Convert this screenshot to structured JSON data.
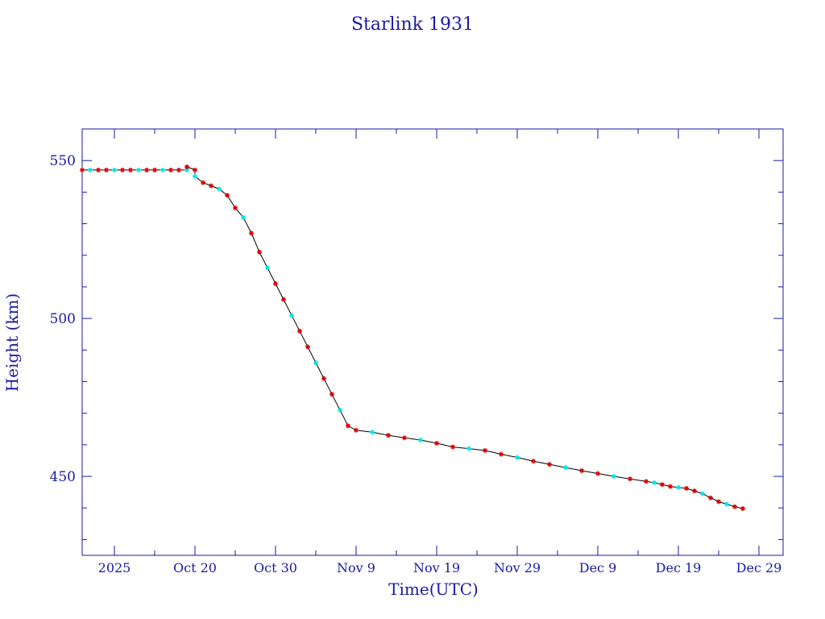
{
  "chart_data": {
    "type": "line",
    "title": "Starlink 1931",
    "xlabel": "Time(UTC)",
    "ylabel": "Height (km)",
    "x_unit": "date (UTC)",
    "xlim": [
      "2025-10-06",
      "2026-01-01"
    ],
    "ylim": [
      425,
      560
    ],
    "x_tick_labels": [
      {
        "date": "2025-10-10",
        "label": "2025"
      },
      {
        "date": "2025-10-20",
        "label": "Oct 20"
      },
      {
        "date": "2025-10-30",
        "label": "Oct 30"
      },
      {
        "date": "2025-11-09",
        "label": "Nov  9"
      },
      {
        "date": "2025-11-19",
        "label": "Nov 19"
      },
      {
        "date": "2025-11-29",
        "label": "Nov 29"
      },
      {
        "date": "2025-12-09",
        "label": "Dec  9"
      },
      {
        "date": "2025-12-19",
        "label": "Dec 19"
      },
      {
        "date": "2025-12-29",
        "label": "Dec 29"
      }
    ],
    "y_ticks": [
      450,
      500,
      550
    ],
    "grid": false,
    "colors": {
      "axis": "#1a1aa6",
      "line": "#000000",
      "marker": "#e00000",
      "marker_alt": "#00e5ee"
    },
    "series": [
      {
        "marker": "asterisk",
        "points": [
          [
            "2025-10-06",
            547.0
          ],
          [
            "2025-10-07",
            547.0
          ],
          [
            "2025-10-08",
            547.0
          ],
          [
            "2025-10-09",
            547.0
          ],
          [
            "2025-10-10",
            547.0
          ],
          [
            "2025-10-11",
            547.0
          ],
          [
            "2025-10-12",
            547.0
          ],
          [
            "2025-10-13",
            547.0
          ],
          [
            "2025-10-14",
            547.0
          ],
          [
            "2025-10-15",
            547.0
          ],
          [
            "2025-10-16",
            547.0
          ],
          [
            "2025-10-17",
            547.0
          ],
          [
            "2025-10-18",
            547.0
          ],
          [
            "2025-10-19",
            547.0
          ],
          [
            "2025-10-19",
            548.0
          ],
          [
            "2025-10-20",
            547.0
          ],
          [
            "2025-10-20",
            545.0
          ],
          [
            "2025-10-21",
            543.0
          ],
          [
            "2025-10-22",
            542.0
          ],
          [
            "2025-10-23",
            541.0
          ],
          [
            "2025-10-24",
            539.0
          ],
          [
            "2025-10-25",
            535.0
          ],
          [
            "2025-10-26",
            532.0
          ],
          [
            "2025-10-27",
            527.0
          ],
          [
            "2025-10-28",
            521.0
          ],
          [
            "2025-10-29",
            516.0
          ],
          [
            "2025-10-30",
            511.0
          ],
          [
            "2025-10-31",
            506.0
          ],
          [
            "2025-11-01",
            501.0
          ],
          [
            "2025-11-02",
            496.0
          ],
          [
            "2025-11-03",
            491.0
          ],
          [
            "2025-11-04",
            486.0
          ],
          [
            "2025-11-05",
            481.0
          ],
          [
            "2025-11-06",
            476.0
          ],
          [
            "2025-11-07",
            471.0
          ],
          [
            "2025-11-08",
            466.0
          ],
          [
            "2025-11-09",
            464.6
          ],
          [
            "2025-11-11",
            464.0
          ],
          [
            "2025-11-13",
            463.0
          ],
          [
            "2025-11-15",
            462.2
          ],
          [
            "2025-11-17",
            461.5
          ],
          [
            "2025-11-19",
            460.5
          ],
          [
            "2025-11-21",
            459.3
          ],
          [
            "2025-11-23",
            458.8
          ],
          [
            "2025-11-25",
            458.2
          ],
          [
            "2025-11-27",
            457.0
          ],
          [
            "2025-11-29",
            456.0
          ],
          [
            "2025-12-01",
            454.8
          ],
          [
            "2025-12-03",
            453.8
          ],
          [
            "2025-12-05",
            452.8
          ],
          [
            "2025-12-07",
            451.8
          ],
          [
            "2025-12-09",
            450.9
          ],
          [
            "2025-12-11",
            450.0
          ],
          [
            "2025-12-13",
            449.2
          ],
          [
            "2025-12-15",
            448.4
          ],
          [
            "2025-12-16",
            448.0
          ],
          [
            "2025-12-17",
            447.4
          ],
          [
            "2025-12-18",
            446.8
          ],
          [
            "2025-12-19",
            446.5
          ],
          [
            "2025-12-20",
            446.2
          ],
          [
            "2025-12-21",
            445.4
          ],
          [
            "2025-12-22",
            444.5
          ],
          [
            "2025-12-23",
            443.2
          ],
          [
            "2025-12-24",
            442.0
          ],
          [
            "2025-12-25",
            441.2
          ],
          [
            "2025-12-26",
            440.4
          ],
          [
            "2025-12-27",
            439.8
          ]
        ]
      }
    ]
  }
}
